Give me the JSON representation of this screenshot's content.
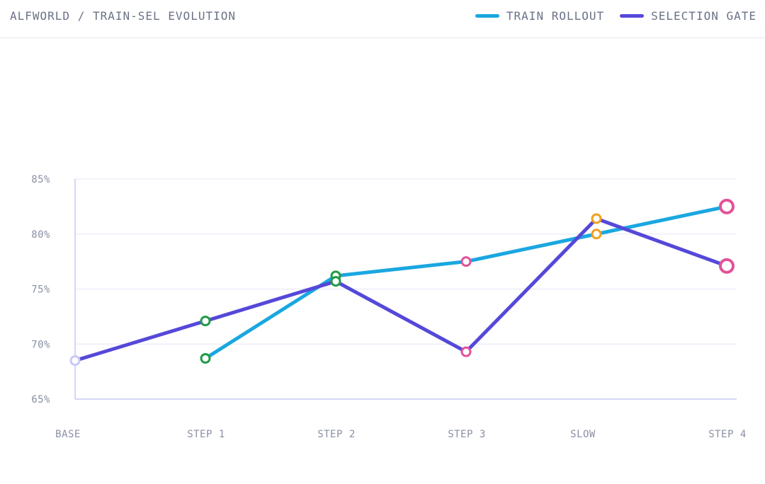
{
  "header": {
    "title": "ALFWORLD / TRAIN-SEL EVOLUTION"
  },
  "legend": [
    {
      "label": "TRAIN ROLLOUT",
      "color": "#1aa7e0"
    },
    {
      "label": "SELECTION GATE",
      "color": "#5548d9"
    }
  ],
  "chart_data": {
    "type": "line",
    "title": "ALFWORLD / TRAIN-SEL EVOLUTION",
    "categories": [
      "BASE",
      "STEP 1",
      "STEP 2",
      "STEP 3",
      "SLOW",
      "STEP 4"
    ],
    "ylim": [
      65,
      85
    ],
    "yticks": [
      65,
      70,
      75,
      80,
      85
    ],
    "ytick_labels": [
      "65%",
      "70%",
      "75%",
      "80%",
      "85%"
    ],
    "grid": true,
    "legend_position": "top-right",
    "series": [
      {
        "name": "TRAIN ROLLOUT",
        "color": "#1aa7e0",
        "values": [
          null,
          68.7,
          76.2,
          77.5,
          80.0,
          82.5
        ]
      },
      {
        "name": "SELECTION GATE",
        "color": "#5548d9",
        "values": [
          68.5,
          72.1,
          75.7,
          69.3,
          81.4,
          77.1
        ]
      }
    ],
    "marker_colors": [
      "#c9c8f5",
      "#1f9b45",
      "#1f9b45",
      "#e2529a",
      "#f0a020",
      "#e2529a"
    ]
  }
}
